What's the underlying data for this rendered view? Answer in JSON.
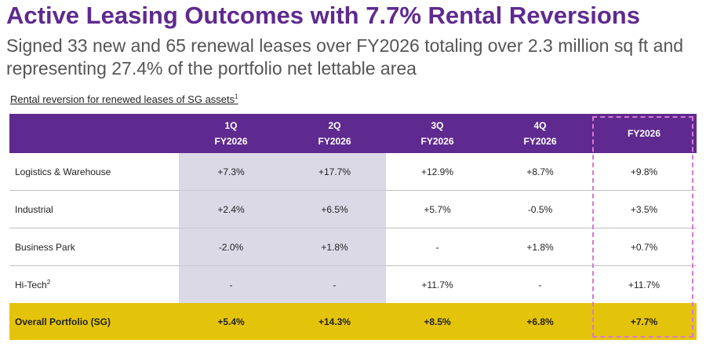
{
  "title": "Active Leasing Outcomes with 7.7% Rental Reversions",
  "subtitle": "Signed 33 new and 65 renewal leases over FY2026 totaling over 2.3 million sq ft and representing 27.4% of the portfolio net lettable area",
  "caption": {
    "text": "Rental reversion for renewed leases of SG assets",
    "footnote": "1"
  },
  "table": {
    "headers": [
      {
        "q": "1Q",
        "fy": "FY2026"
      },
      {
        "q": "2Q",
        "fy": "FY2026"
      },
      {
        "q": "3Q",
        "fy": "FY2026"
      },
      {
        "q": "4Q",
        "fy": "FY2026"
      },
      {
        "q": "",
        "fy": "FY2026"
      }
    ],
    "rows": [
      {
        "label": "Logistics & Warehouse",
        "footnote": "",
        "values": [
          "+7.3%",
          "+17.7%",
          "+12.9%",
          "+8.7%",
          "+9.8%"
        ]
      },
      {
        "label": "Industrial",
        "footnote": "",
        "values": [
          "+2.4%",
          "+6.5%",
          "+5.7%",
          "-0.5%",
          "+3.5%"
        ]
      },
      {
        "label": "Business Park",
        "footnote": "",
        "values": [
          "-2.0%",
          "+1.8%",
          "-",
          "+1.8%",
          "+0.7%"
        ]
      },
      {
        "label": "Hi-Tech",
        "footnote": "2",
        "values": [
          "-",
          "-",
          "+11.7%",
          "-",
          "+11.7%"
        ]
      }
    ],
    "total": {
      "label": "Overall Portfolio (SG)",
      "values": [
        "+5.4%",
        "+14.3%",
        "+8.5%",
        "+6.8%",
        "+7.7%"
      ]
    }
  },
  "colors": {
    "brand_purple": "#5f2a8f",
    "total_row_yellow": "#e4c40a",
    "shaded_columns": "#dcd9e7",
    "highlight_dashed": "#d977d6"
  }
}
